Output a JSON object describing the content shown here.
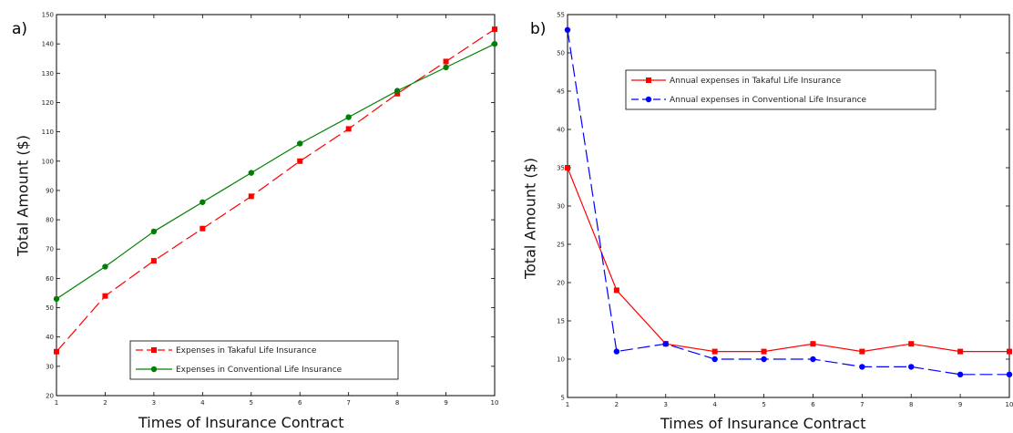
{
  "chart_data": [
    {
      "type": "line",
      "panel_label": "a)",
      "title": "",
      "xlabel": "Times of Insurance Contract",
      "ylabel": "Total Amount ($)",
      "xlim": [
        1,
        10
      ],
      "ylim": [
        20,
        150
      ],
      "x": [
        1,
        2,
        3,
        4,
        5,
        6,
        7,
        8,
        9,
        10
      ],
      "x_ticks": [
        "1",
        "2",
        "3",
        "4",
        "5",
        "6",
        "7",
        "8",
        "9",
        "10"
      ],
      "y_ticks": [
        "20",
        "30",
        "40",
        "50",
        "60",
        "70",
        "80",
        "90",
        "100",
        "110",
        "120",
        "130",
        "140",
        "150"
      ],
      "grid": false,
      "legend_position": "bottom-right",
      "series": [
        {
          "name": "Expenses in Takaful Life Insurance",
          "color": "#ff0000",
          "marker": "square",
          "dash": "long-dash",
          "values": [
            35,
            54,
            66,
            77,
            88,
            100,
            111,
            123,
            134,
            145
          ]
        },
        {
          "name": "Expenses in Conventional Life Insurance",
          "color": "#008000",
          "marker": "circle",
          "dash": "solid",
          "values": [
            53,
            64,
            76,
            86,
            96,
            106,
            115,
            124,
            132,
            140
          ]
        }
      ]
    },
    {
      "type": "line",
      "panel_label": "b)",
      "title": "",
      "xlabel": "Times of Insurance Contract",
      "ylabel": "Total Amount ($)",
      "xlim": [
        1,
        10
      ],
      "ylim": [
        5,
        55
      ],
      "x": [
        1,
        2,
        3,
        4,
        5,
        6,
        7,
        8,
        9,
        10
      ],
      "x_ticks": [
        "1",
        "2",
        "3",
        "4",
        "5",
        "6",
        "7",
        "8",
        "9",
        "10"
      ],
      "y_ticks": [
        "5",
        "10",
        "15",
        "20",
        "25",
        "30",
        "35",
        "40",
        "45",
        "50",
        "55"
      ],
      "grid": false,
      "legend_position": "top-center",
      "series": [
        {
          "name": "Annual expenses in Takaful Life Insurance",
          "color": "#ff0000",
          "marker": "square",
          "dash": "solid",
          "values": [
            35,
            19,
            12,
            11,
            11,
            12,
            11,
            12,
            11,
            11
          ]
        },
        {
          "name": "Annual expenses in Conventional Life Insurance",
          "color": "#0000ff",
          "marker": "circle",
          "dash": "long-dash",
          "values": [
            53,
            11,
            12,
            10,
            10,
            10,
            9,
            9,
            8,
            8
          ]
        }
      ]
    }
  ]
}
